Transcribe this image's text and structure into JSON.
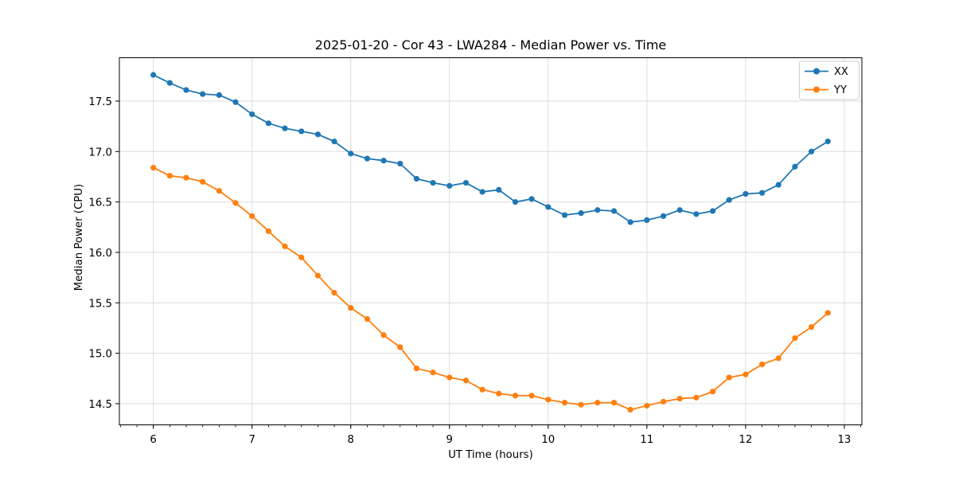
{
  "chart_data": {
    "type": "line",
    "title": "2025-01-20 - Cor 43 - LWA284 - Median Power vs. Time",
    "xlabel": "UT Time (hours)",
    "ylabel": "Median Power (CPU)",
    "xlim": [
      5.656,
      13.178
    ],
    "ylim": [
      14.29,
      17.93
    ],
    "xticks": [
      6,
      7,
      8,
      9,
      10,
      11,
      12,
      13
    ],
    "yticks": [
      14.5,
      15.0,
      15.5,
      16.0,
      16.5,
      17.0,
      17.5
    ],
    "x_minor_interval": 0.16667,
    "grid": "major",
    "grid_color": "#dcdcdc",
    "legend_position": "upper right",
    "marker": "circle",
    "x": [
      6.0,
      6.167,
      6.333,
      6.5,
      6.667,
      6.833,
      7.0,
      7.167,
      7.333,
      7.5,
      7.667,
      7.833,
      8.0,
      8.167,
      8.333,
      8.5,
      8.667,
      8.833,
      9.0,
      9.167,
      9.333,
      9.5,
      9.667,
      9.833,
      10.0,
      10.167,
      10.333,
      10.5,
      10.667,
      10.833,
      11.0,
      11.167,
      11.333,
      11.5,
      11.667,
      11.833,
      12.0,
      12.167,
      12.333,
      12.5,
      12.667,
      12.833
    ],
    "series": [
      {
        "name": "XX",
        "color": "#1f77b4",
        "values": [
          17.76,
          17.68,
          17.61,
          17.57,
          17.56,
          17.49,
          17.37,
          17.28,
          17.23,
          17.2,
          17.17,
          17.1,
          16.98,
          16.93,
          16.91,
          16.88,
          16.73,
          16.69,
          16.66,
          16.69,
          16.6,
          16.62,
          16.5,
          16.53,
          16.45,
          16.37,
          16.39,
          16.42,
          16.41,
          16.3,
          16.32,
          16.36,
          16.42,
          16.38,
          16.41,
          16.52,
          16.58,
          16.59,
          16.67,
          16.85,
          17.0,
          17.1
        ]
      },
      {
        "name": "YY",
        "color": "#ff7f0e",
        "values": [
          16.84,
          16.76,
          16.74,
          16.7,
          16.61,
          16.49,
          16.36,
          16.21,
          16.06,
          15.95,
          15.77,
          15.6,
          15.45,
          15.34,
          15.18,
          15.06,
          14.85,
          14.81,
          14.76,
          14.73,
          14.64,
          14.6,
          14.58,
          14.58,
          14.54,
          14.51,
          14.49,
          14.51,
          14.51,
          14.44,
          14.48,
          14.52,
          14.55,
          14.56,
          14.62,
          14.76,
          14.79,
          14.89,
          14.95,
          15.15,
          15.26,
          15.4
        ]
      }
    ]
  }
}
